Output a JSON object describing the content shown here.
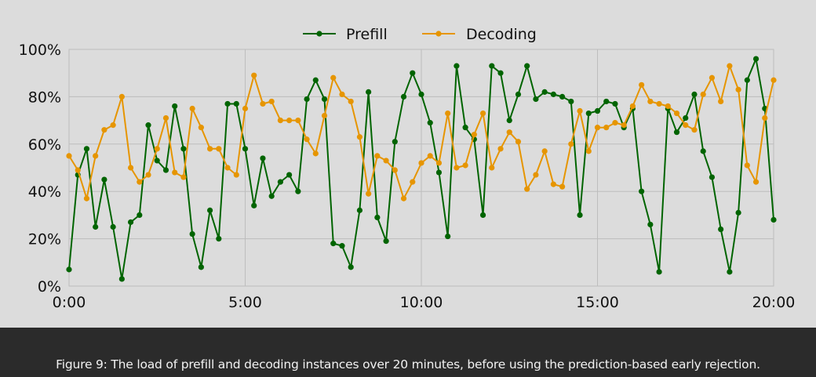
{
  "chart_data": {
    "type": "line",
    "x_tick_labels": [
      "0:00",
      "5:00",
      "10:00",
      "15:00",
      "20:00"
    ],
    "x_ticks_minutes": [
      0,
      5,
      10,
      15,
      20
    ],
    "y_tick_labels": [
      "0%",
      "20%",
      "40%",
      "60%",
      "80%",
      "100%"
    ],
    "y_ticks": [
      0,
      20,
      40,
      60,
      80,
      100
    ],
    "xlim": [
      0,
      20
    ],
    "ylim": [
      0,
      100
    ],
    "grid": true,
    "legend_placement": "top-center",
    "x_minutes": [
      0.0,
      0.25,
      0.5,
      0.75,
      1.0,
      1.25,
      1.5,
      1.75,
      2.0,
      2.25,
      2.5,
      2.75,
      3.0,
      3.25,
      3.5,
      3.75,
      4.0,
      4.25,
      4.5,
      4.75,
      5.0,
      5.25,
      5.5,
      5.75,
      6.0,
      6.25,
      6.5,
      6.75,
      7.0,
      7.25,
      7.5,
      7.75,
      8.0,
      8.25,
      8.5,
      8.75,
      9.0,
      9.25,
      9.5,
      9.75,
      10.0,
      10.25,
      10.5,
      10.75,
      11.0,
      11.25,
      11.5,
      11.75,
      12.0,
      12.25,
      12.5,
      12.75,
      13.0,
      13.25,
      13.5,
      13.75,
      14.0,
      14.25,
      14.5,
      14.75,
      15.0,
      15.25,
      15.5,
      15.75,
      16.0,
      16.25,
      16.5,
      16.75,
      17.0,
      17.25,
      17.5,
      17.75,
      18.0,
      18.25,
      18.5,
      18.75,
      19.0,
      19.25,
      19.5,
      19.75,
      20.0
    ],
    "series": [
      {
        "name": "Prefill",
        "color": "#006400",
        "values": [
          7,
          47,
          58,
          25,
          45,
          25,
          3,
          27,
          30,
          68,
          53,
          49,
          76,
          58,
          22,
          8,
          32,
          20,
          77,
          77,
          58,
          34,
          54,
          38,
          44,
          47,
          40,
          79,
          87,
          79,
          18,
          17,
          8,
          32,
          82,
          29,
          19,
          61,
          80,
          90,
          81,
          69,
          48,
          21,
          93,
          67,
          62,
          30,
          93,
          90,
          70,
          81,
          93,
          79,
          82,
          81,
          80,
          78,
          30,
          73,
          74,
          78,
          77,
          67,
          75,
          40,
          26,
          6,
          75,
          65,
          71,
          81,
          57,
          46,
          24,
          6,
          31,
          87,
          96,
          75,
          28
        ]
      },
      {
        "name": "Decoding",
        "color": "#e69500",
        "values": [
          55,
          49,
          37,
          55,
          66,
          68,
          80,
          50,
          44,
          47,
          58,
          71,
          48,
          46,
          75,
          67,
          58,
          58,
          50,
          47,
          75,
          89,
          77,
          78,
          70,
          70,
          70,
          62,
          56,
          72,
          88,
          81,
          78,
          63,
          39,
          55,
          53,
          49,
          37,
          44,
          52,
          55,
          52,
          73,
          50,
          51,
          64,
          73,
          50,
          58,
          65,
          61,
          41,
          47,
          57,
          43,
          42,
          60,
          74,
          57,
          67,
          67,
          69,
          68,
          76,
          85,
          78,
          77,
          76,
          73,
          68,
          66,
          81,
          88,
          78,
          93,
          83,
          51,
          44,
          71,
          87
        ]
      }
    ]
  },
  "caption": "Figure 9: The load of prefill and decoding instances over 20 minutes, before using the prediction-based early rejection."
}
